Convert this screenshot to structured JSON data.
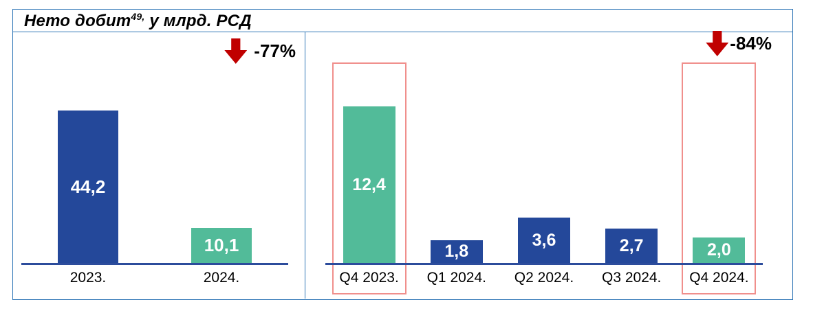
{
  "title": {
    "text_main": "Нето добит",
    "footnote_marker": "49,",
    "text_unit": " у млрд. РСД"
  },
  "chart_data": [
    {
      "type": "bar",
      "categories": [
        "2023.",
        "2024."
      ],
      "values": [
        44.2,
        10.1
      ],
      "value_labels": [
        "44,2",
        "10,1"
      ],
      "bar_colors": [
        "#24489A",
        "#52BB99"
      ],
      "ylim": [
        0,
        50
      ],
      "grid": false,
      "highlighted_categories": [],
      "annotation": {
        "text": "-77%",
        "icon": "down-arrow",
        "color": "#C00000"
      }
    },
    {
      "type": "bar",
      "categories": [
        "Q4 2023.",
        "Q1 2024.",
        "Q2 2024.",
        "Q3 2024.",
        "Q4 2024."
      ],
      "values": [
        12.4,
        1.8,
        3.6,
        2.7,
        2.0
      ],
      "value_labels": [
        "12,4",
        "1,8",
        "3,6",
        "2,7",
        "2,0"
      ],
      "bar_colors": [
        "#52BB99",
        "#24489A",
        "#24489A",
        "#24489A",
        "#52BB99"
      ],
      "ylim": [
        0,
        13
      ],
      "grid": false,
      "highlighted_categories": [
        "Q4 2023.",
        "Q4 2024."
      ],
      "annotation": {
        "text": "-84%",
        "icon": "down-arrow",
        "color": "#C00000"
      }
    }
  ],
  "colors": {
    "panel_border": "#2E75B6",
    "axis_line": "#2C4C9C",
    "highlight_border": "#F08F8C",
    "bar_blue": "#24489A",
    "bar_teal": "#52BB99",
    "arrow_red": "#C00000"
  }
}
